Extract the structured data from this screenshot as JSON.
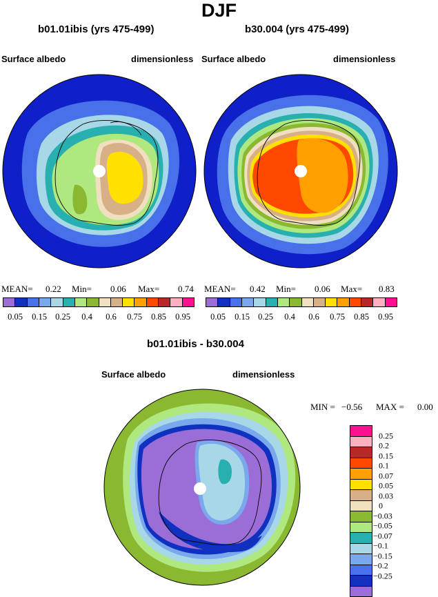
{
  "title": "DJF",
  "palette": {
    "fills": [
      "#9a6ed6",
      "#1030c0",
      "#4870e8",
      "#7aa8ec",
      "#a8d8e8",
      "#28b0b0",
      "#b0e880",
      "#8ab830",
      "#f0e0c0",
      "#d8b088",
      "#ffe000",
      "#ffa000",
      "#ff4800",
      "#b82828",
      "#ffb0c0",
      "#ff1090"
    ],
    "mapBackground": "#1020c8",
    "coast": "#000000"
  },
  "panels": [
    {
      "title": "b01.01ibis (yrs 475-499)",
      "variable": "Surface albedo",
      "units": "dimensionless",
      "stats": {
        "mean_label": "MEAN=",
        "mean": "0.22",
        "min_label": "Min=",
        "min": "0.06",
        "max_label": "Max=",
        "max": "0.74"
      },
      "colorbar_ticks": [
        "0.05",
        "0.15",
        "0.25",
        "0.4",
        "0.6",
        "0.75",
        "0.85",
        "0.95"
      ]
    },
    {
      "title": "b30.004 (yrs 475-499)",
      "variable": "Surface albedo",
      "units": "dimensionless",
      "stats": {
        "mean_label": "MEAN=",
        "mean": "0.42",
        "min_label": "Min=",
        "min": "0.06",
        "max_label": "Max=",
        "max": "0.83"
      },
      "colorbar_ticks": [
        "0.05",
        "0.15",
        "0.25",
        "0.4",
        "0.6",
        "0.75",
        "0.85",
        "0.95"
      ]
    }
  ],
  "diff": {
    "title": "b01.01ibis - b30.004",
    "variable": "Surface albedo",
    "units": "dimensionless",
    "stats": {
      "min_label": "MIN =",
      "min": "−0.56",
      "max_label": "MAX =",
      "max": "0.00"
    },
    "colorbar_labels": [
      "0.25",
      "0.2",
      "0.15",
      "0.1",
      "0.07",
      "0.05",
      "0.03",
      "0",
      "−0.03",
      "−0.05",
      "−0.07",
      "−0.1",
      "−0.15",
      "−0.2",
      "−0.25"
    ],
    "colorbar_fills": [
      "#ff1090",
      "#ffb0c0",
      "#b82828",
      "#ff4800",
      "#ffa000",
      "#ffe000",
      "#d8b088",
      "#f0e0c0",
      "#8ab830",
      "#b0e880",
      "#28b0b0",
      "#a8d8e8",
      "#7aa8ec",
      "#4870e8",
      "#1030c0",
      "#9a6ed6"
    ]
  }
}
